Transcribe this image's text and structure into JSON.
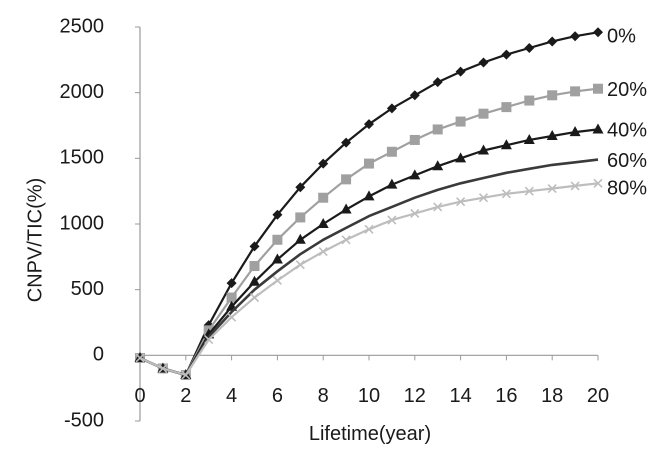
{
  "chart_data": {
    "type": "line",
    "xlabel": "Lifetime(year)",
    "ylabel": "CNPV/TIC(%)",
    "xlim": [
      0,
      20
    ],
    "ylim": [
      -500,
      2500
    ],
    "x_ticks": [
      0,
      2,
      4,
      6,
      8,
      10,
      12,
      14,
      16,
      18,
      20
    ],
    "y_ticks": [
      -500,
      0,
      500,
      1000,
      1500,
      2000,
      2500
    ],
    "grid": false,
    "x": [
      0,
      1,
      2,
      3,
      4,
      5,
      6,
      7,
      8,
      9,
      10,
      11,
      12,
      13,
      14,
      15,
      16,
      17,
      18,
      19,
      20
    ],
    "series": [
      {
        "name": "0%",
        "color": "#1a1a1a",
        "marker": "diamond",
        "values": [
          -20,
          -100,
          -150,
          230,
          550,
          830,
          1070,
          1280,
          1460,
          1620,
          1760,
          1880,
          1980,
          2080,
          2160,
          2230,
          2290,
          2340,
          2390,
          2430,
          2460
        ]
      },
      {
        "name": "20%",
        "color": "#a0a0a0",
        "marker": "square",
        "values": [
          -20,
          -100,
          -150,
          190,
          440,
          680,
          880,
          1050,
          1200,
          1340,
          1460,
          1550,
          1640,
          1720,
          1780,
          1840,
          1890,
          1940,
          1980,
          2010,
          2030
        ]
      },
      {
        "name": "40%",
        "color": "#1a1a1a",
        "marker": "triangle",
        "values": [
          -20,
          -100,
          -150,
          160,
          370,
          560,
          730,
          880,
          1000,
          1110,
          1210,
          1300,
          1370,
          1440,
          1500,
          1560,
          1600,
          1640,
          1670,
          1700,
          1720
        ]
      },
      {
        "name": "60%",
        "color": "#3a3a3a",
        "marker": "none",
        "values": [
          -20,
          -100,
          -150,
          140,
          330,
          500,
          640,
          770,
          880,
          970,
          1060,
          1130,
          1200,
          1260,
          1310,
          1350,
          1390,
          1420,
          1450,
          1470,
          1490
        ]
      },
      {
        "name": "80%",
        "color": "#bdbdbd",
        "marker": "x",
        "values": [
          -20,
          -100,
          -150,
          120,
          290,
          440,
          570,
          690,
          790,
          880,
          960,
          1030,
          1080,
          1130,
          1170,
          1200,
          1230,
          1250,
          1270,
          1290,
          1310
        ]
      }
    ]
  }
}
